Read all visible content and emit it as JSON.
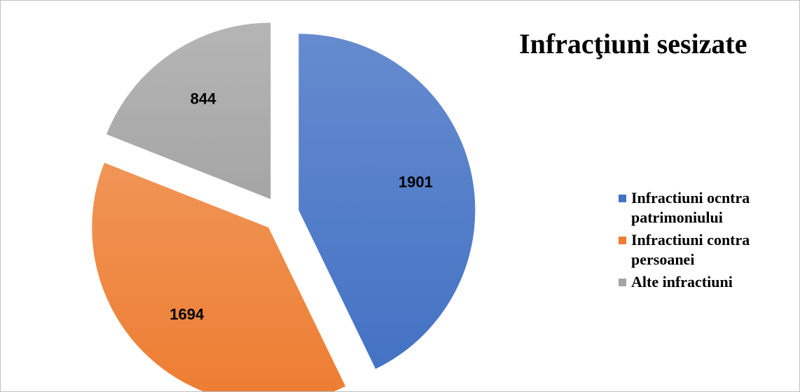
{
  "chart_data": {
    "type": "pie",
    "title": "Infracţiuni sesizate",
    "categories": [
      "Infractiuni ocntra patrimoniului",
      "Infractiuni contra persoanei",
      "Alte infractiuni"
    ],
    "values": [
      1901,
      1694,
      844
    ],
    "colors": [
      "#4472c4",
      "#ed7d31",
      "#a5a5a5"
    ],
    "legend": "right"
  }
}
